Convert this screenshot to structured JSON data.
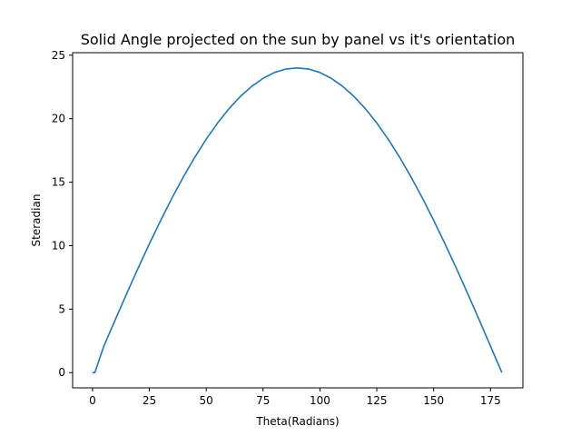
{
  "chart_data": {
    "type": "line",
    "title": "Solid Angle projected on the sun by panel vs it's orientation",
    "xlabel": "Theta(Radians)",
    "ylabel": "Steradian",
    "xlim": [
      -8.75,
      189.25
    ],
    "ylim": [
      -1.2,
      25.2
    ],
    "xticks": [
      0,
      25,
      50,
      75,
      100,
      125,
      150,
      175
    ],
    "yticks": [
      0,
      5,
      10,
      15,
      20,
      25
    ],
    "grid": false,
    "series": [
      {
        "color": "#1f77b4",
        "x": [
          0,
          1,
          5,
          10,
          15,
          20,
          25,
          30,
          35,
          40,
          45,
          50,
          55,
          60,
          65,
          70,
          75,
          80,
          85,
          90,
          95,
          100,
          105,
          110,
          115,
          120,
          125,
          130,
          135,
          140,
          145,
          150,
          155,
          160,
          165,
          170,
          175,
          180
        ],
        "y": [
          0,
          0,
          2.09,
          4.17,
          6.21,
          8.21,
          10.14,
          12.0,
          13.77,
          15.43,
          16.97,
          18.39,
          19.66,
          20.78,
          21.75,
          22.55,
          23.18,
          23.64,
          23.91,
          24.0,
          23.91,
          23.64,
          23.18,
          22.55,
          21.75,
          20.78,
          19.66,
          18.39,
          16.97,
          15.43,
          13.77,
          12.0,
          10.14,
          8.21,
          6.21,
          4.17,
          2.09,
          0
        ]
      }
    ]
  }
}
